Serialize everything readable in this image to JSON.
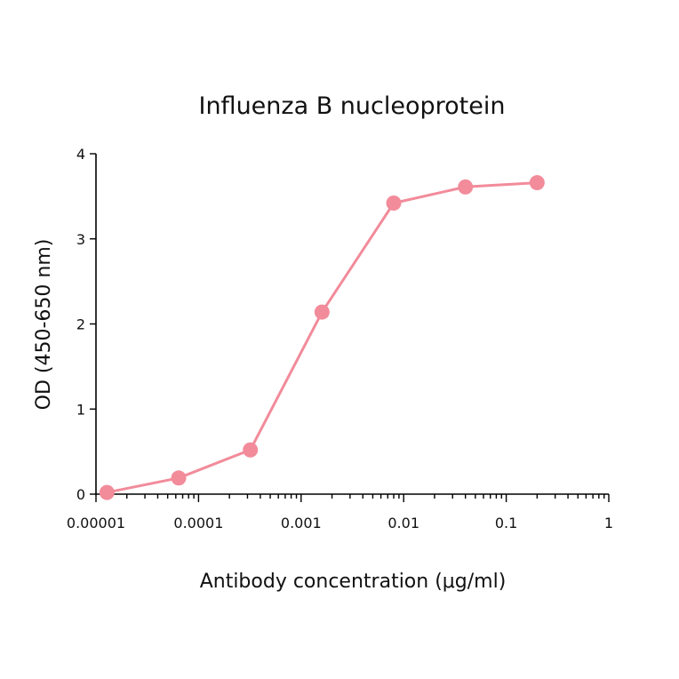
{
  "chart_data": {
    "type": "line",
    "title": "Influenza B nucleoprotein",
    "xlabel": "Antibody concentration (μg/ml)",
    "ylabel": "OD (450-650 nm)",
    "x_scale": "log",
    "xlim": [
      1e-05,
      1
    ],
    "ylim": [
      0,
      4
    ],
    "x_tick_labels": [
      "0.00001",
      "0.0001",
      "0.001",
      "0.01",
      "0.1",
      "1"
    ],
    "y_tick_labels": [
      "0",
      "1",
      "2",
      "3",
      "4"
    ],
    "grid": false,
    "color": "#f28b9a",
    "series": [
      {
        "x": [
          1.28e-05,
          6.4e-05,
          0.00032,
          0.0016,
          0.008,
          0.04,
          0.2
        ],
        "y": [
          0.02,
          0.19,
          0.52,
          2.14,
          3.42,
          3.61,
          3.66
        ]
      }
    ]
  }
}
